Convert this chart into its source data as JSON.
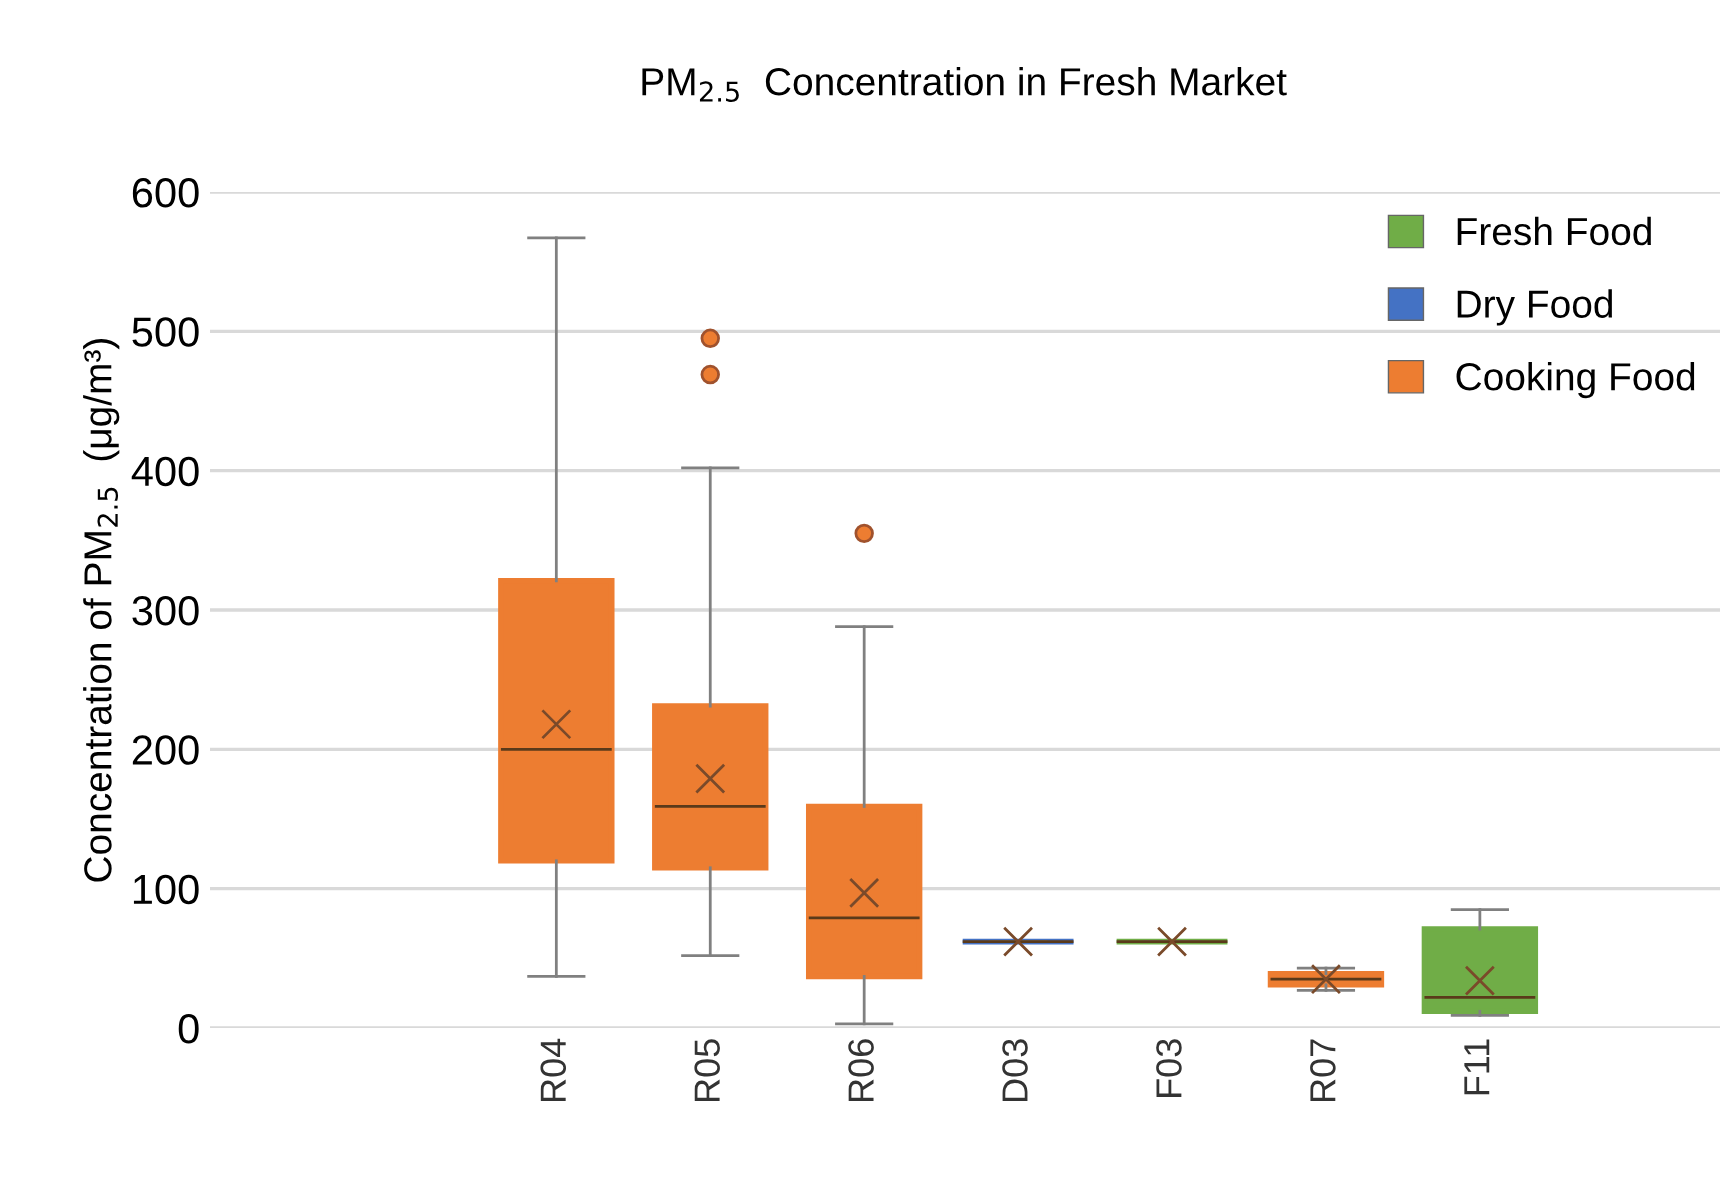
{
  "chart_data": {
    "type": "box",
    "title": "PM$_{2.5}$  Concentration in Fresh Market",
    "ylabel": "Concentration of PM$_{2.5}$  (μg/m³)",
    "categories": [
      "R04",
      "R05",
      "R06",
      "D03",
      "F03",
      "R07",
      "F11"
    ],
    "series": [
      {
        "name": "Fresh Food",
        "color": "#70ad47",
        "boxes": [
          null,
          null,
          null,
          null,
          {
            "low": 62,
            "q1": 62,
            "median": 62,
            "q3": 62,
            "high": 62,
            "mean": 62
          },
          null,
          {
            "low": 9,
            "q1": 12,
            "median": 22,
            "q3": 71,
            "high": 85,
            "mean": 34
          }
        ]
      },
      {
        "name": "Dry Food",
        "color": "#4472c4",
        "boxes": [
          null,
          null,
          null,
          {
            "low": 62,
            "q1": 62,
            "median": 62,
            "q3": 62,
            "high": 62,
            "mean": 62
          },
          null,
          null,
          null
        ]
      },
      {
        "name": "Cooking Food",
        "color": "#ed7d31",
        "boxes": [
          {
            "low": 37,
            "q1": 120,
            "median": 200,
            "q3": 321,
            "high": 567,
            "mean": 218
          },
          {
            "low": 52,
            "q1": 115,
            "median": 159,
            "q3": 231,
            "high": 402,
            "mean": 179,
            "outliers": [
              469,
              495
            ]
          },
          {
            "low": 3,
            "q1": 37,
            "median": 79,
            "q3": 159,
            "high": 288,
            "mean": 97,
            "outliers": [
              355
            ]
          },
          null,
          null,
          {
            "low": 27,
            "q1": 31,
            "median": 35,
            "q3": 39,
            "high": 43,
            "mean": 35
          },
          null
        ]
      }
    ],
    "ylim": [
      0,
      600
    ],
    "yticks": [
      0,
      100,
      200,
      300,
      400,
      500,
      600
    ],
    "grid": "y",
    "legend": "top right"
  }
}
